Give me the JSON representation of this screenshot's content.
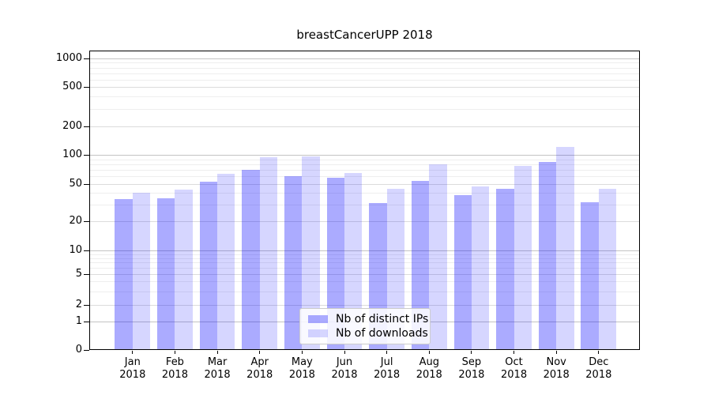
{
  "title": "breastCancerUPP 2018",
  "colors": {
    "ips_bar": "rgba(0,0,255,0.33)",
    "downloads_bar": "rgba(0,0,255,0.16)",
    "grid_major": "#c3c3c3",
    "grid_medium": "#dcdcdc",
    "grid_minor": "#eeeeee",
    "axis": "#000000",
    "text": "#000000",
    "legend_border": "#cccccc"
  },
  "chart_data": {
    "type": "bar",
    "title": "breastCancerUPP 2018",
    "categories": [
      "Jan 2018",
      "Feb 2018",
      "Mar 2018",
      "Apr 2018",
      "May 2018",
      "Jun 2018",
      "Jul 2018",
      "Aug 2018",
      "Sep 2018",
      "Oct 2018",
      "Nov 2018",
      "Dec 2018"
    ],
    "series": [
      {
        "name": "Nb of distinct IPs",
        "values": [
          34,
          35,
          52,
          70,
          60,
          58,
          31,
          53,
          38,
          44,
          85,
          32
        ]
      },
      {
        "name": "Nb of downloads",
        "values": [
          40,
          43,
          63,
          94,
          97,
          65,
          44,
          79,
          47,
          76,
          120,
          44
        ]
      }
    ],
    "y_ticks": [
      0,
      1,
      2,
      5,
      10,
      20,
      50,
      100,
      200,
      500,
      1000
    ],
    "y_major_gridlines": [
      1,
      10,
      100,
      1000
    ],
    "y_minor_gridlines": [
      3,
      4,
      6,
      7,
      8,
      9,
      30,
      40,
      60,
      70,
      80,
      90,
      300,
      400,
      600,
      700,
      800,
      900
    ],
    "yscale": "symlog",
    "ylim": [
      0,
      1150
    ],
    "grid": true,
    "legend_position": "lower center inside",
    "xlabel": "",
    "ylabel": ""
  }
}
